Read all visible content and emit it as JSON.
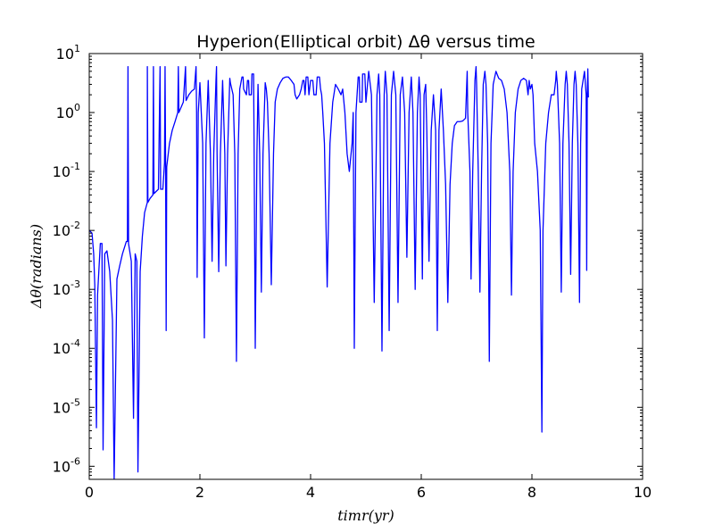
{
  "chart_data": {
    "type": "line",
    "title": "Hyperion(Elliptical orbit) Δθ versus time",
    "xlabel": "timr(yr)",
    "ylabel": "Δθ(radians)",
    "xlim": [
      0,
      10
    ],
    "ylim": [
      6e-07,
      10
    ],
    "yscale": "log",
    "grid": false,
    "x_ticks": [
      0,
      2,
      4,
      6,
      8,
      10
    ],
    "x_tick_labels": [
      "0",
      "2",
      "4",
      "6",
      "8",
      "10"
    ],
    "y_ticks": [
      -6,
      -5,
      -4,
      -3,
      -2,
      -1,
      0,
      1
    ],
    "y_tick_labels": [
      {
        "base": "10",
        "exp": "-6"
      },
      {
        "base": "10",
        "exp": "-5"
      },
      {
        "base": "10",
        "exp": "-4"
      },
      {
        "base": "10",
        "exp": "-3"
      },
      {
        "base": "10",
        "exp": "-2"
      },
      {
        "base": "10",
        "exp": "-1"
      },
      {
        "base": "10",
        "exp": "0"
      },
      {
        "base": "10",
        "exp": "1"
      }
    ],
    "series": [
      {
        "color": "#0000ff",
        "points": [
          [
            0.0,
            0.01
          ],
          [
            0.05,
            0.009
          ],
          [
            0.08,
            0.004
          ],
          [
            0.1,
            0.0012
          ],
          [
            0.13,
            4.5e-06
          ],
          [
            0.15,
            0.0008
          ],
          [
            0.2,
            0.006
          ],
          [
            0.23,
            0.006
          ],
          [
            0.25,
            1.9e-06
          ],
          [
            0.28,
            0.004
          ],
          [
            0.32,
            0.0045
          ],
          [
            0.37,
            0.002
          ],
          [
            0.42,
            0.0003
          ],
          [
            0.45,
            6e-07
          ],
          [
            0.5,
            0.0015
          ],
          [
            0.55,
            0.0025
          ],
          [
            0.6,
            0.004
          ],
          [
            0.67,
            0.0065
          ],
          [
            0.69,
            0.0065
          ],
          [
            0.7,
            6.0
          ],
          [
            0.71,
            0.006
          ],
          [
            0.76,
            0.003
          ],
          [
            0.8,
            6.5e-06
          ],
          [
            0.83,
            0.004
          ],
          [
            0.86,
            0.003
          ],
          [
            0.88,
            8e-07
          ],
          [
            0.92,
            0.002
          ],
          [
            0.96,
            0.008
          ],
          [
            1.0,
            0.02
          ],
          [
            1.05,
            0.03
          ],
          [
            1.05,
            6.0
          ],
          [
            1.06,
            0.03
          ],
          [
            1.1,
            0.035
          ],
          [
            1.15,
            0.04
          ],
          [
            1.16,
            6.0
          ],
          [
            1.17,
            0.042
          ],
          [
            1.2,
            0.045
          ],
          [
            1.25,
            0.05
          ],
          [
            1.28,
            6.0
          ],
          [
            1.29,
            0.05
          ],
          [
            1.33,
            0.05
          ],
          [
            1.36,
            0.14
          ],
          [
            1.37,
            6.0
          ],
          [
            1.38,
            0.12
          ],
          [
            1.39,
            0.0002
          ],
          [
            1.4,
            0.12
          ],
          [
            1.45,
            0.3
          ],
          [
            1.5,
            0.5
          ],
          [
            1.55,
            0.7
          ],
          [
            1.6,
            1.0
          ],
          [
            1.61,
            6.0
          ],
          [
            1.62,
            1.0
          ],
          [
            1.7,
            1.5
          ],
          [
            1.74,
            6.0
          ],
          [
            1.75,
            1.6
          ],
          [
            1.8,
            2.0
          ],
          [
            1.85,
            2.3
          ],
          [
            1.9,
            2.5
          ],
          [
            1.93,
            6.0
          ],
          [
            1.94,
            1.0
          ],
          [
            1.95,
            0.0016
          ],
          [
            1.97,
            1.0
          ],
          [
            2.0,
            3.2
          ],
          [
            2.05,
            0.3
          ],
          [
            2.08,
            0.00015
          ],
          [
            2.11,
            0.3
          ],
          [
            2.15,
            3.5
          ],
          [
            2.19,
            0.2
          ],
          [
            2.22,
            0.003
          ],
          [
            2.25,
            0.2
          ],
          [
            2.29,
            3.5
          ],
          [
            2.3,
            6.0
          ],
          [
            2.31,
            0.2
          ],
          [
            2.34,
            0.002
          ],
          [
            2.37,
            0.2
          ],
          [
            2.41,
            3.5
          ],
          [
            2.45,
            0.2
          ],
          [
            2.47,
            0.0025
          ],
          [
            2.5,
            0.2
          ],
          [
            2.54,
            3.8
          ],
          [
            2.55,
            3.2
          ],
          [
            2.6,
            2.0
          ],
          [
            2.63,
            0.2
          ],
          [
            2.66,
            6e-05
          ],
          [
            2.69,
            0.2
          ],
          [
            2.72,
            2.5
          ],
          [
            2.76,
            4.0
          ],
          [
            2.78,
            4.0
          ],
          [
            2.79,
            2.5
          ],
          [
            2.84,
            2.0
          ],
          [
            2.86,
            3.5
          ],
          [
            2.88,
            3.5
          ],
          [
            2.89,
            2.0
          ],
          [
            2.93,
            2.0
          ],
          [
            2.94,
            4.5
          ],
          [
            2.97,
            4.5
          ],
          [
            2.98,
            0.2
          ],
          [
            3.0,
            0.0001
          ],
          [
            3.03,
            0.2
          ],
          [
            3.05,
            3.0
          ],
          [
            3.08,
            0.2
          ],
          [
            3.11,
            0.0009
          ],
          [
            3.14,
            0.2
          ],
          [
            3.18,
            3.2
          ],
          [
            3.2,
            2.5
          ],
          [
            3.22,
            1.5
          ],
          [
            3.25,
            0.2
          ],
          [
            3.29,
            0.0012
          ],
          [
            3.33,
            0.2
          ],
          [
            3.36,
            1.5
          ],
          [
            3.4,
            2.5
          ],
          [
            3.45,
            3.2
          ],
          [
            3.5,
            3.8
          ],
          [
            3.55,
            4.0
          ],
          [
            3.6,
            4.0
          ],
          [
            3.65,
            3.5
          ],
          [
            3.7,
            3.0
          ],
          [
            3.72,
            2.0
          ],
          [
            3.75,
            1.7
          ],
          [
            3.8,
            2.0
          ],
          [
            3.83,
            2.5
          ],
          [
            3.86,
            3.5
          ],
          [
            3.88,
            3.5
          ],
          [
            3.9,
            2.0
          ],
          [
            3.92,
            4.0
          ],
          [
            3.95,
            4.0
          ],
          [
            3.97,
            2.0
          ],
          [
            4.0,
            3.5
          ],
          [
            4.04,
            3.5
          ],
          [
            4.06,
            2.0
          ],
          [
            4.1,
            2.0
          ],
          [
            4.12,
            4.0
          ],
          [
            4.16,
            4.0
          ],
          [
            4.18,
            2.5
          ],
          [
            4.2,
            2.0
          ],
          [
            4.22,
            1.0
          ],
          [
            4.25,
            0.3
          ],
          [
            4.3,
            0.0011
          ],
          [
            4.35,
            0.3
          ],
          [
            4.4,
            1.5
          ],
          [
            4.45,
            3.0
          ],
          [
            4.5,
            2.5
          ],
          [
            4.55,
            2.0
          ],
          [
            4.58,
            2.5
          ],
          [
            4.62,
            1.0
          ],
          [
            4.66,
            0.2
          ],
          [
            4.7,
            0.1
          ],
          [
            4.75,
            0.3
          ],
          [
            4.77,
            1.0
          ],
          [
            4.79,
            0.0001
          ],
          [
            4.82,
            1.0
          ],
          [
            4.86,
            4.0
          ],
          [
            4.88,
            4.0
          ],
          [
            4.89,
            1.5
          ],
          [
            4.93,
            1.5
          ],
          [
            4.94,
            4.5
          ],
          [
            4.98,
            4.5
          ],
          [
            5.0,
            1.5
          ],
          [
            5.05,
            5.0
          ],
          [
            5.1,
            2.0
          ],
          [
            5.15,
            0.0006
          ],
          [
            5.2,
            2.0
          ],
          [
            5.23,
            4.5
          ],
          [
            5.25,
            2.0
          ],
          [
            5.29,
            9e-05
          ],
          [
            5.33,
            2.0
          ],
          [
            5.35,
            5.0
          ],
          [
            5.38,
            2.0
          ],
          [
            5.42,
            0.0002
          ],
          [
            5.46,
            2.0
          ],
          [
            5.5,
            5.0
          ],
          [
            5.54,
            2.0
          ],
          [
            5.58,
            0.0006
          ],
          [
            5.62,
            2.0
          ],
          [
            5.66,
            4.0
          ],
          [
            5.7,
            1.0
          ],
          [
            5.74,
            0.0035
          ],
          [
            5.78,
            1.0
          ],
          [
            5.82,
            4.0
          ],
          [
            5.85,
            1.0
          ],
          [
            5.89,
            0.001
          ],
          [
            5.93,
            1.0
          ],
          [
            5.96,
            4.0
          ],
          [
            5.98,
            2.0
          ],
          [
            6.02,
            0.0015
          ],
          [
            6.05,
            2.0
          ],
          [
            6.08,
            3.0
          ],
          [
            6.1,
            0.5
          ],
          [
            6.14,
            0.003
          ],
          [
            6.18,
            0.5
          ],
          [
            6.22,
            2.0
          ],
          [
            6.26,
            0.5
          ],
          [
            6.29,
            0.0002
          ],
          [
            6.32,
            0.5
          ],
          [
            6.36,
            2.5
          ],
          [
            6.4,
            0.5
          ],
          [
            6.44,
            0.06
          ],
          [
            6.48,
            0.0006
          ],
          [
            6.52,
            0.06
          ],
          [
            6.56,
            0.3
          ],
          [
            6.6,
            0.6
          ],
          [
            6.65,
            0.7
          ],
          [
            6.7,
            0.7
          ],
          [
            6.75,
            0.72
          ],
          [
            6.8,
            0.8
          ],
          [
            6.83,
            5.0
          ],
          [
            6.84,
            1.0
          ],
          [
            6.88,
            0.1
          ],
          [
            6.9,
            0.0015
          ],
          [
            6.93,
            0.1
          ],
          [
            6.97,
            3.5
          ],
          [
            6.99,
            6.0
          ],
          [
            7.0,
            3.0
          ],
          [
            7.03,
            0.1
          ],
          [
            7.06,
            0.0009
          ],
          [
            7.09,
            0.1
          ],
          [
            7.12,
            3.0
          ],
          [
            7.15,
            5.0
          ],
          [
            7.17,
            3.0
          ],
          [
            7.2,
            0.3
          ],
          [
            7.23,
            6e-05
          ],
          [
            7.26,
            0.3
          ],
          [
            7.3,
            3.0
          ],
          [
            7.35,
            5.0
          ],
          [
            7.4,
            3.8
          ],
          [
            7.45,
            3.5
          ],
          [
            7.5,
            2.5
          ],
          [
            7.55,
            1.0
          ],
          [
            7.6,
            0.1
          ],
          [
            7.63,
            0.0008
          ],
          [
            7.66,
            0.1
          ],
          [
            7.7,
            1.0
          ],
          [
            7.75,
            2.5
          ],
          [
            7.8,
            3.5
          ],
          [
            7.85,
            3.8
          ],
          [
            7.9,
            3.5
          ],
          [
            7.93,
            2.0
          ],
          [
            7.95,
            3.5
          ],
          [
            7.97,
            2.5
          ],
          [
            8.0,
            3.0
          ],
          [
            8.02,
            2.0
          ],
          [
            8.05,
            0.3
          ],
          [
            8.1,
            0.1
          ],
          [
            8.15,
            0.01
          ],
          [
            8.18,
            3.8e-06
          ],
          [
            8.2,
            0.01
          ],
          [
            8.25,
            0.3
          ],
          [
            8.3,
            1.0
          ],
          [
            8.35,
            2.0
          ],
          [
            8.4,
            2.0
          ],
          [
            8.43,
            3.5
          ],
          [
            8.44,
            5.0
          ],
          [
            8.46,
            3.0
          ],
          [
            8.5,
            0.3
          ],
          [
            8.53,
            0.0009
          ],
          [
            8.56,
            0.3
          ],
          [
            8.6,
            3.0
          ],
          [
            8.62,
            5.0
          ],
          [
            8.64,
            3.0
          ],
          [
            8.67,
            0.3
          ],
          [
            8.7,
            0.0018
          ],
          [
            8.73,
            0.3
          ],
          [
            8.76,
            3.0
          ],
          [
            8.78,
            5.0
          ],
          [
            8.8,
            3.0
          ],
          [
            8.83,
            0.3
          ],
          [
            8.86,
            0.0006
          ],
          [
            8.88,
            0.3
          ],
          [
            8.9,
            2.5
          ],
          [
            8.95,
            5.0
          ],
          [
            8.98,
            2.0
          ],
          [
            8.99,
            0.0021
          ],
          [
            9.0,
            2.0
          ],
          [
            9.01,
            5.5
          ],
          [
            9.02,
            1.8
          ]
        ]
      }
    ]
  }
}
